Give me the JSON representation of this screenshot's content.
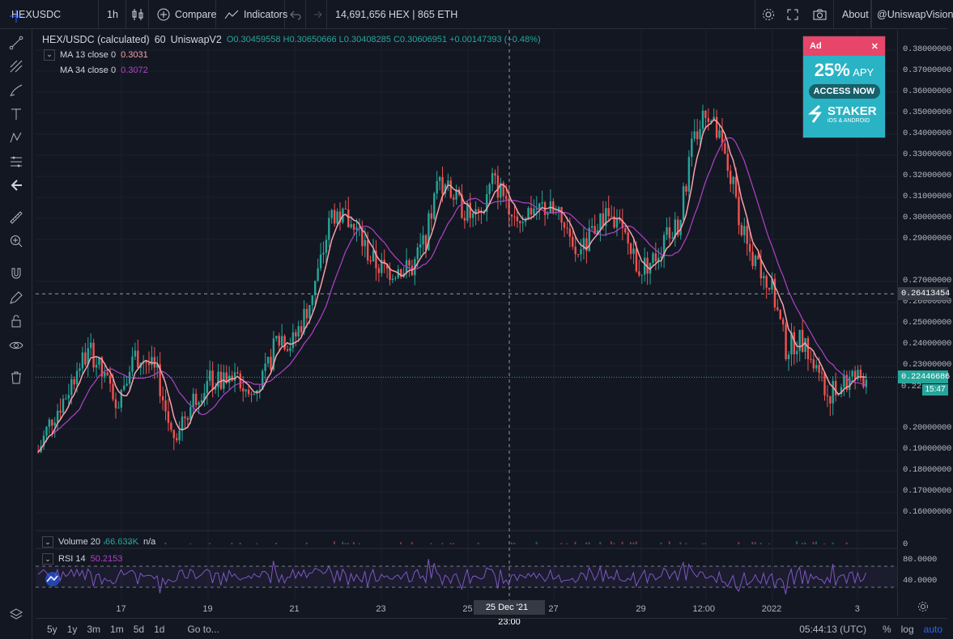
{
  "topbar": {
    "symbol": "HEXUSDC",
    "interval": "1h",
    "compare": "Compare",
    "indicators": "Indicators",
    "pool_info": "14,691,656 HEX | 865 ETH",
    "about": "About",
    "user": "@UniswapVision"
  },
  "legend": {
    "title": "HEX/USDC (calculated)",
    "interval": "60",
    "exchange": "UniswapV2",
    "ohlc": "O0.30459558  H0.30650666  L0.30408285  C0.30606951  +0.00147393 (+0.48%)",
    "ma13_label": "MA 13 close 0",
    "ma13_value": "0.3031",
    "ma34_label": "MA 34 close 0",
    "ma34_value": "0.3072"
  },
  "ad": {
    "tag": "Ad",
    "headline": "25%",
    "apy": "APY",
    "cta": "ACCESS NOW",
    "brand": "STAKER",
    "sub": "iOS & ANDROID"
  },
  "price_axis": [
    "0.38000000",
    "0.37000000",
    "0.36000000",
    "0.35000000",
    "0.34000000",
    "0.33000000",
    "0.32000000",
    "0.31000000",
    "0.30000000",
    "0.29000000",
    "0.27000000",
    "0.26000000",
    "0.25000000",
    "0.24000000",
    "0.23000000",
    "0.20000000",
    "0.19000000",
    "0.18000000",
    "0.17000000",
    "0.16000000"
  ],
  "price_axis_values": [
    0.38,
    0.37,
    0.36,
    0.35,
    0.34,
    0.33,
    0.32,
    0.31,
    0.3,
    0.29,
    0.27,
    0.26,
    0.25,
    0.24,
    0.23,
    0.2,
    0.19,
    0.18,
    0.17,
    0.16
  ],
  "crosshair_price": "0.26413454",
  "crosshair_price_value": 0.26413454,
  "last_price": "0.22446686",
  "last_price_value": 0.22446686,
  "last_price_clip": "0.22",
  "countdown": "15:47",
  "volume_pane": {
    "label": "Volume 20",
    "value": "66.633K",
    "extra": "n/a",
    "axis": "0"
  },
  "rsi_pane": {
    "label": "RSI 14",
    "value": "50.2153",
    "axis_hi": "80.0000",
    "axis_lo": "40.0000"
  },
  "time_axis": [
    "17",
    "19",
    "21",
    "23",
    "25",
    "27",
    "29",
    "12:00",
    "2022",
    "3"
  ],
  "crosshair_time": "25 Dec '21",
  "crosshair_time2": "23:00",
  "bottom": {
    "ranges": [
      "5y",
      "1y",
      "3m",
      "1m",
      "5d",
      "1d"
    ],
    "goto": "Go to...",
    "clock": "05:44:13 (UTC)",
    "pct": "%",
    "log": "log",
    "auto": "auto"
  },
  "colors": {
    "up": "#26a69a",
    "down": "#ef5350",
    "ma13": "#f7a1a8",
    "ma34": "#b042c8",
    "bg": "#131722"
  },
  "chart_data": {
    "type": "candlestick",
    "series": [
      {
        "name": "close",
        "values": [
          0.189,
          0.205,
          0.215,
          0.23,
          0.237,
          0.222,
          0.214,
          0.235,
          0.233,
          0.224,
          0.196,
          0.207,
          0.218,
          0.223,
          0.221,
          0.222,
          0.215,
          0.225,
          0.245,
          0.24,
          0.255,
          0.275,
          0.303,
          0.3,
          0.292,
          0.28,
          0.275,
          0.276,
          0.276,
          0.29,
          0.318,
          0.311,
          0.303,
          0.298,
          0.318,
          0.31,
          0.3,
          0.305,
          0.305,
          0.3,
          0.283,
          0.287,
          0.3,
          0.3,
          0.29,
          0.276,
          0.28,
          0.29,
          0.298,
          0.335,
          0.352,
          0.337,
          0.316,
          0.287,
          0.275,
          0.265,
          0.238,
          0.243,
          0.232,
          0.216,
          0.219,
          0.224,
          0.225
        ]
      }
    ],
    "ma13": {
      "name": "MA 13 close 0",
      "value": 0.3031
    },
    "ma34": {
      "name": "MA 34 close 0",
      "value": 0.3072
    },
    "ylim": [
      0.155,
      0.385
    ]
  }
}
